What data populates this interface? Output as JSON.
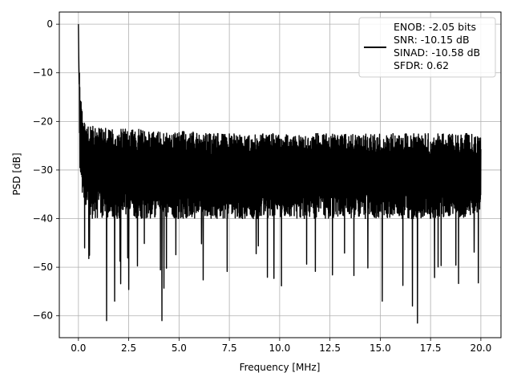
{
  "chart_data": {
    "type": "line",
    "xlabel": "Frequency [MHz]",
    "ylabel": "PSD [dB]",
    "xlim": [
      -0.95,
      21.0
    ],
    "ylim": [
      -64.5,
      2.5
    ],
    "xticks": [
      0.0,
      2.5,
      5.0,
      7.5,
      10.0,
      12.5,
      15.0,
      17.5,
      20.0
    ],
    "xtick_labels": [
      "0.0",
      "2.5",
      "5.0",
      "7.5",
      "10.0",
      "12.5",
      "15.0",
      "17.5",
      "20.0"
    ],
    "yticks": [
      0,
      -10,
      -20,
      -30,
      -40,
      -50,
      -60
    ],
    "ytick_labels": [
      "0",
      "−10",
      "−20",
      "−30",
      "−40",
      "−50",
      "−60"
    ],
    "grid": true,
    "legend_position": "top-right",
    "legend_lines": [
      "ENOB: -2.05 bits",
      "SNR: -10.15 dB",
      "SINAD: -10.58 dB",
      "SFDR: 0.62"
    ],
    "line_color": "#000000",
    "series": [
      {
        "x": [
          0.0,
          0.02,
          0.04,
          0.06,
          0.08,
          0.1,
          0.12,
          0.15,
          0.18,
          0.21,
          0.25,
          0.3,
          0.35,
          0.4,
          0.5,
          0.6,
          0.75,
          0.9,
          1.1,
          1.4,
          1.65,
          1.8,
          2.2,
          2.6,
          3.0,
          3.5,
          4.1,
          4.5,
          5.0,
          5.5,
          6.0,
          6.5,
          7.0,
          7.5,
          8.0,
          8.5,
          9.0,
          9.5,
          10.0,
          10.5,
          11.0,
          11.5,
          12.0,
          12.5,
          13.0,
          13.5,
          14.0,
          14.5,
          15.0,
          15.5,
          16.0,
          16.5,
          16.85,
          17.5,
          18.0,
          18.5,
          19.0,
          19.5,
          20.0
        ],
        "y": [
          0,
          -8,
          -12,
          -16,
          -20,
          -22,
          -24,
          -25,
          -26,
          -27,
          -27,
          -28,
          -28,
          -28,
          -28.5,
          -29,
          -29,
          -29.5,
          -29.5,
          -30,
          -30,
          -30,
          -30,
          -30,
          -30.5,
          -30.5,
          -30.5,
          -30.5,
          -30.5,
          -30.5,
          -30.5,
          -30.5,
          -30.5,
          -30.5,
          -30.5,
          -30.5,
          -30.5,
          -30.5,
          -30.5,
          -30.5,
          -30.5,
          -30.5,
          -30.5,
          -30.5,
          -30.5,
          -30.5,
          -30.5,
          -30.5,
          -30.5,
          -30.5,
          -30.5,
          -30.5,
          -30.5,
          -30.5,
          -30.5,
          -30.5,
          -30.5,
          -30.5,
          -30.5
        ],
        "lower_envelope": [
          0,
          -13,
          -20,
          -27,
          -32,
          -34,
          -35,
          -36,
          -37,
          -37,
          -38,
          -38,
          -39,
          -39,
          -40,
          -40,
          -40,
          -40,
          -40,
          -40,
          -40,
          -40,
          -40,
          -40,
          -40,
          -40,
          -40,
          -40,
          -40,
          -40,
          -40,
          -40,
          -40,
          -40,
          -40,
          -40,
          -40,
          -40,
          -40,
          -40,
          -40,
          -40,
          -40,
          -40,
          -40,
          -40,
          -40,
          -40,
          -40,
          -40,
          -40,
          -40,
          -40,
          -40,
          -40,
          -40,
          -40,
          -40,
          -38
        ],
        "upper_envelope": [
          0,
          -3,
          -6,
          -9,
          -12,
          -14,
          -15,
          -16,
          -17,
          -18,
          -18.5,
          -19,
          -19.5,
          -19.5,
          -20,
          -20,
          -20.5,
          -21,
          -21,
          -21.5,
          -21.5,
          -21.5,
          -21.5,
          -21.5,
          -21.5,
          -22,
          -22,
          -22,
          -22,
          -22,
          -22.5,
          -22.5,
          -22.5,
          -22.5,
          -22.5,
          -22.5,
          -22.5,
          -22.5,
          -22.5,
          -22.5,
          -22.5,
          -22.5,
          -22.5,
          -22.5,
          -22.5,
          -22.5,
          -22.5,
          -22.5,
          -22.5,
          -22.5,
          -22.5,
          -22.5,
          -22.5,
          -22.5,
          -22.5,
          -22.5,
          -22.5,
          -22.5,
          -23
        ]
      }
    ],
    "notable_dips": [
      {
        "x": 1.4,
        "y": -61
      },
      {
        "x": 1.8,
        "y": -57
      },
      {
        "x": 4.15,
        "y": -61
      },
      {
        "x": 16.85,
        "y": -61.5
      },
      {
        "x": 16.6,
        "y": -58
      },
      {
        "x": 15.1,
        "y": -57
      }
    ]
  }
}
